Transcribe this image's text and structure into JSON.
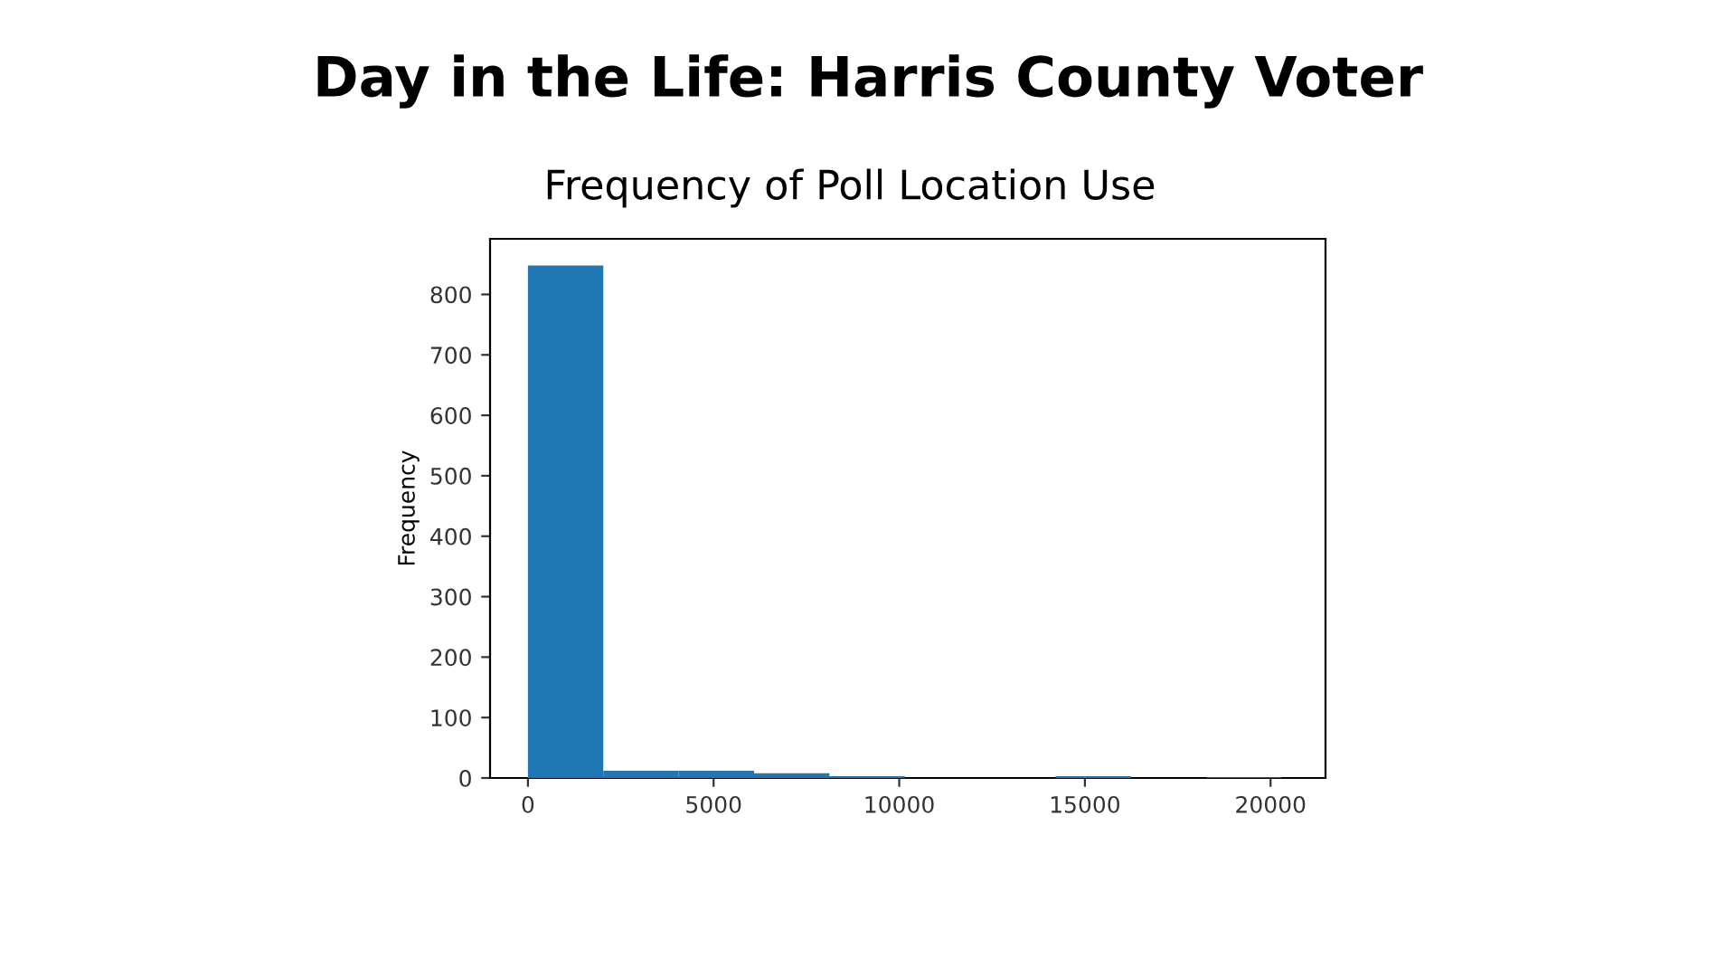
{
  "chart_data": {
    "type": "histogram",
    "title": "Day in the Life: Harris County Voter",
    "subtitle": "Frequency of Poll Location Use",
    "ylabel": "Frequency",
    "bins": [
      0,
      2030,
      4060,
      6090,
      8120,
      10150,
      12180,
      14210,
      16240,
      18270,
      20300
    ],
    "values": [
      848,
      12,
      12,
      8,
      3,
      0,
      0,
      3,
      0,
      1
    ],
    "color": "#1f77b4",
    "xlim": [
      -1020,
      21480
    ],
    "ylim": [
      0,
      892
    ],
    "xticks": [
      0,
      5000,
      10000,
      15000,
      20000
    ],
    "yticks": [
      0,
      100,
      200,
      300,
      400,
      500,
      600,
      700,
      800
    ],
    "grid": false
  }
}
